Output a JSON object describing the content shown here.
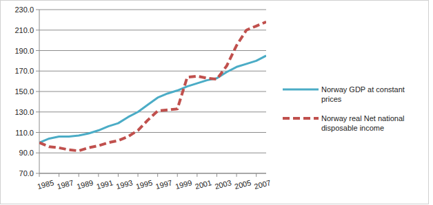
{
  "chart_data": {
    "type": "line",
    "x": [
      1985,
      1986,
      1987,
      1988,
      1989,
      1990,
      1991,
      1992,
      1993,
      1994,
      1995,
      1996,
      1997,
      1998,
      1999,
      2000,
      2001,
      2002,
      2003,
      2004,
      2005,
      2006,
      2007,
      2008
    ],
    "xlim": [
      1985,
      2008
    ],
    "xticks": [
      1985,
      1987,
      1989,
      1991,
      1993,
      1995,
      1997,
      1999,
      2001,
      2003,
      2005,
      2007
    ],
    "ylim": [
      70,
      230
    ],
    "yticks": [
      {
        "value": 70,
        "label": "70.0"
      },
      {
        "value": 90,
        "label": "90.0"
      },
      {
        "value": 110,
        "label": "110.0"
      },
      {
        "value": 130,
        "label": "130.0"
      },
      {
        "value": 150,
        "label": "150.0"
      },
      {
        "value": 170,
        "label": "170.0"
      },
      {
        "value": 190,
        "label": "190.0"
      },
      {
        "value": 210,
        "label": "210.0"
      },
      {
        "value": 230,
        "label": "230.0"
      }
    ],
    "grid": true,
    "legend": "right",
    "series": [
      {
        "name": "Norway GDP at constant prices",
        "color": "#4bacc6",
        "line_style": "solid",
        "values": [
          100,
          104,
          106,
          106,
          107,
          109,
          112,
          116,
          119,
          125,
          130,
          137,
          144,
          148,
          151,
          155,
          158,
          161,
          163,
          169,
          174,
          177,
          180,
          185
        ]
      },
      {
        "name": "Norway real Net national disposable income",
        "color": "#c0504d",
        "line_style": "dashed",
        "values": [
          100,
          96,
          95,
          93,
          92,
          95,
          97,
          100,
          102,
          106,
          112,
          122,
          131,
          132,
          133,
          164,
          165,
          163,
          162,
          175,
          195,
          210,
          214,
          218
        ]
      }
    ]
  }
}
